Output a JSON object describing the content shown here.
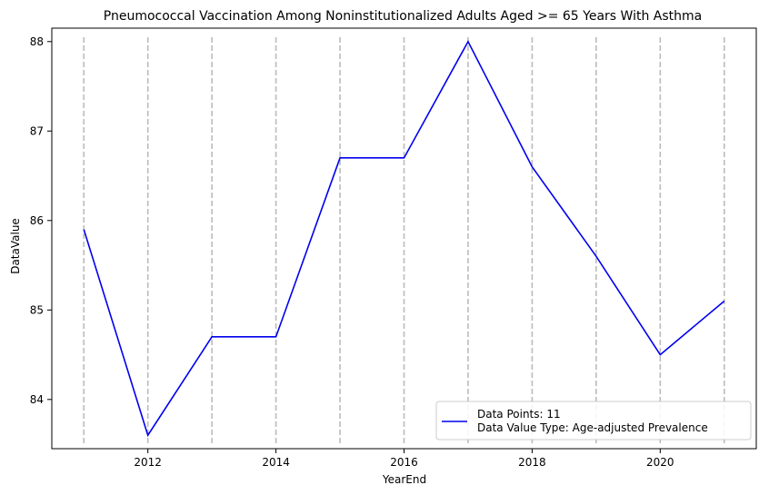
{
  "chart_data": {
    "type": "line",
    "title": "Pneumococcal Vaccination Among Noninstitutionalized Adults Aged >= 65 Years With Asthma",
    "xlabel": "YearEnd",
    "ylabel": "DataValue",
    "x": [
      2011,
      2012,
      2013,
      2014,
      2015,
      2016,
      2017,
      2018,
      2019,
      2020,
      2021
    ],
    "series": [
      {
        "name": "Data Points: 11",
        "values": [
          85.9,
          83.6,
          84.7,
          84.7,
          86.7,
          86.7,
          88.0,
          86.6,
          85.6,
          84.5,
          85.1
        ],
        "color": "#0000ee"
      }
    ],
    "xlim": [
      2010.5,
      2021.5
    ],
    "ylim": [
      83.45,
      88.15
    ],
    "xticks": [
      2012,
      2014,
      2016,
      2018,
      2020
    ],
    "yticks": [
      84,
      85,
      86,
      87,
      88
    ],
    "vertical_reference_lines": [
      2011,
      2012,
      2013,
      2014,
      2015,
      2016,
      2017,
      2018,
      2019,
      2020,
      2021
    ],
    "reference_line_color": "#bbbbbb",
    "legend": {
      "placement": "lower-right",
      "lines": [
        "Data Points: 11",
        "Data Value Type: Age-adjusted Prevalence"
      ]
    },
    "grid": false
  }
}
